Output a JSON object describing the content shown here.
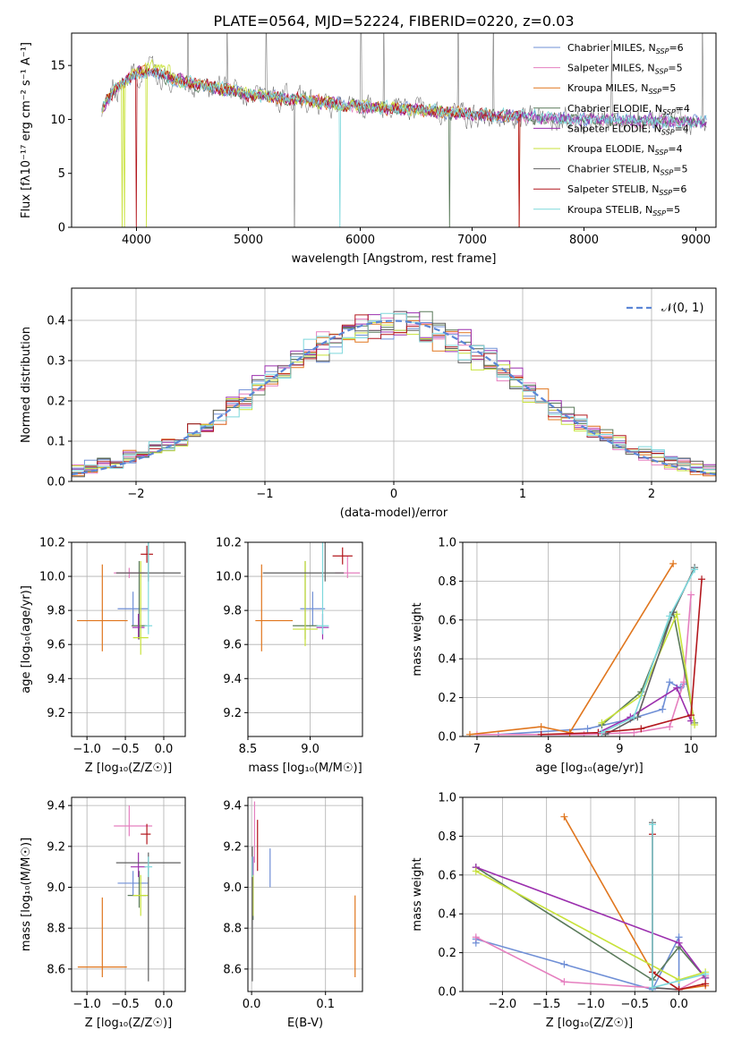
{
  "figure_title": "PLATE=0564, MJD=52224, FIBERID=0220, z=0.03",
  "colors": {
    "chabrier_miles": "#6f8fd6",
    "salpeter_miles": "#e57fbf",
    "kroupa_miles": "#e0761e",
    "chabrier_elodie": "#5a7a5a",
    "salpeter_elodie": "#9b2fae",
    "kroupa_elodie": "#c8e23a",
    "chabrier_stelib": "#606060",
    "salpeter_stelib": "#b2171d",
    "kroupa_stelib": "#7dd8dc",
    "gauss": "#5b86d6"
  },
  "chart_data": [
    {
      "id": "spectrum",
      "type": "line",
      "xlabel": "wavelength [Angstrom, rest frame]",
      "ylabel": "Flux [fλ10⁻¹⁷ erg cm⁻² s⁻¹ A⁻¹]",
      "xlim": [
        3420,
        9180
      ],
      "ylim": [
        0,
        18
      ],
      "xticks": [
        4000,
        5000,
        6000,
        7000,
        8000,
        9000
      ],
      "yticks": [
        0,
        5,
        10,
        15
      ],
      "grid": false,
      "legend_position": "top-right",
      "legend": [
        "Chabrier MILES, N_SSP=6",
        "Salpeter MILES, N_SSP=5",
        "Kroupa MILES, N_SSP=5",
        "Chabrier ELODIE, N_SSP=4",
        "Salpeter ELODIE, N_SSP=4",
        "Kroupa ELODIE, N_SSP=4",
        "Chabrier STELIB, N_SSP=5",
        "Salpeter STELIB, N_SSP=6",
        "Kroupa STELIB, N_SSP=5"
      ],
      "data_continuum": {
        "x": [
          3680,
          3800,
          3950,
          4050,
          4200,
          4500,
          4800,
          5000,
          5300,
          5600,
          6000,
          6500,
          7000,
          7500,
          8000,
          8500,
          9000,
          9100
        ],
        "y": [
          11.0,
          12.6,
          14.0,
          14.4,
          14.2,
          13.3,
          12.8,
          12.3,
          12.0,
          11.7,
          11.2,
          10.9,
          10.5,
          10.2,
          10.0,
          9.9,
          9.8,
          9.8
        ]
      }
    },
    {
      "id": "residual_hist",
      "type": "histogram",
      "xlabel": "(data-model)/error",
      "ylabel": "Normed distribution",
      "xlim": [
        -2.5,
        2.5
      ],
      "ylim": [
        0,
        0.48
      ],
      "xticks": [
        -2,
        -1,
        0,
        1,
        2
      ],
      "yticks": [
        0.0,
        0.1,
        0.2,
        0.3,
        0.4
      ],
      "grid": true,
      "legend_position": "top-right",
      "legend": [
        "𝒩(0, 1)"
      ],
      "bin_width": 0.1
    },
    {
      "id": "age_vs_Z",
      "type": "errorbar",
      "xlabel": "Z [log₁₀(Z/Z☉)]",
      "ylabel": "age  [log₁₀(age/yr)]",
      "xlim": [
        -1.2,
        0.28
      ],
      "ylim": [
        9.06,
        10.2
      ],
      "xticks": [
        -1.0,
        -0.5,
        0.0
      ],
      "yticks": [
        9.2,
        9.4,
        9.6,
        9.8,
        10.0,
        10.2
      ],
      "grid": true,
      "points": [
        {
          "c": "chabrier_miles",
          "x": -0.4,
          "xerr": [
            0.2,
            0.2
          ],
          "y": 9.81,
          "yerr": [
            0.1,
            0.1
          ]
        },
        {
          "c": "salpeter_miles",
          "x": -0.45,
          "xerr": [
            0.2,
            0.2
          ],
          "y": 10.02,
          "yerr": [
            0.03,
            0.03
          ]
        },
        {
          "c": "kroupa_miles",
          "x": -0.8,
          "xerr": [
            0.33,
            0.33
          ],
          "y": 9.74,
          "yerr": [
            0.18,
            0.33
          ]
        },
        {
          "c": "chabrier_elodie",
          "x": -0.32,
          "xerr": [
            0.1,
            0.1
          ],
          "y": 9.71,
          "yerr": [
            0.08,
            0.38
          ]
        },
        {
          "c": "salpeter_elodie",
          "x": -0.33,
          "xerr": [
            0.08,
            0.08
          ],
          "y": 9.7,
          "yerr": [
            0.07,
            0.08
          ]
        },
        {
          "c": "kroupa_elodie",
          "x": -0.3,
          "xerr": [
            0.1,
            0.1
          ],
          "y": 9.64,
          "yerr": [
            0.1,
            0.45
          ]
        },
        {
          "c": "chabrier_stelib",
          "x": -0.2,
          "xerr": [
            0.42,
            0.42
          ],
          "y": 10.02,
          "yerr": [
            0.05,
            0.9
          ]
        },
        {
          "c": "salpeter_stelib",
          "x": -0.22,
          "xerr": [
            0.08,
            0.08
          ],
          "y": 10.13,
          "yerr": [
            0.05,
            0.05
          ]
        },
        {
          "c": "kroupa_stelib",
          "x": -0.2,
          "xerr": [
            0.05,
            0.05
          ],
          "y": 9.71,
          "yerr": [
            0.05,
            0.6
          ]
        }
      ]
    },
    {
      "id": "age_vs_mass",
      "type": "errorbar",
      "xlabel": "mass [log₁₀(M/M☉)]",
      "ylabel": "",
      "xlim": [
        8.5,
        9.42
      ],
      "ylim": [
        9.06,
        10.2
      ],
      "xticks": [
        8.5,
        9.0
      ],
      "yticks": [
        9.2,
        9.4,
        9.6,
        9.8,
        10.0,
        10.2
      ],
      "grid": true,
      "points": [
        {
          "c": "chabrier_miles",
          "x": 9.02,
          "xerr": [
            0.1,
            0.1
          ],
          "y": 9.81,
          "yerr": [
            0.1,
            0.1
          ]
        },
        {
          "c": "salpeter_miles",
          "x": 9.3,
          "xerr": [
            0.1,
            0.1
          ],
          "y": 10.02,
          "yerr": [
            0.03,
            0.1
          ]
        },
        {
          "c": "kroupa_miles",
          "x": 8.61,
          "xerr": [
            0.05,
            0.25
          ],
          "y": 9.74,
          "yerr": [
            0.18,
            0.33
          ]
        },
        {
          "c": "chabrier_elodie",
          "x": 8.96,
          "xerr": [
            0.1,
            0.1
          ],
          "y": 9.71,
          "yerr": [
            0.08,
            0.38
          ]
        },
        {
          "c": "salpeter_elodie",
          "x": 9.1,
          "xerr": [
            0.05,
            0.05
          ],
          "y": 9.7,
          "yerr": [
            0.07,
            0.08
          ]
        },
        {
          "c": "kroupa_elodie",
          "x": 8.96,
          "xerr": [
            0.1,
            0.1
          ],
          "y": 9.69,
          "yerr": [
            0.1,
            0.4
          ]
        },
        {
          "c": "chabrier_stelib",
          "x": 9.12,
          "xerr": [
            0.5,
            0.15
          ],
          "y": 10.02,
          "yerr": [
            0.05,
            0.9
          ]
        },
        {
          "c": "salpeter_stelib",
          "x": 9.26,
          "xerr": [
            0.08,
            0.08
          ],
          "y": 10.12,
          "yerr": [
            0.05,
            0.05
          ]
        },
        {
          "c": "kroupa_stelib",
          "x": 9.1,
          "xerr": [
            0.05,
            0.05
          ],
          "y": 9.71,
          "yerr": [
            0.05,
            0.6
          ]
        }
      ]
    },
    {
      "id": "mass_weight_vs_age",
      "type": "line",
      "xlabel": "age  [log₁₀(age/yr)]",
      "ylabel": "mass weight",
      "xlim": [
        6.8,
        10.35
      ],
      "ylim": [
        0,
        1.0
      ],
      "xticks": [
        7,
        8,
        9,
        10
      ],
      "yticks": [
        0.0,
        0.2,
        0.4,
        0.6,
        0.8,
        1.0
      ],
      "grid": true,
      "series": [
        {
          "c": "chabrier_miles",
          "x": [
            7.3,
            8.55,
            9.15,
            9.6,
            9.7,
            9.85,
            9.9
          ],
          "y": [
            0.01,
            0.04,
            0.09,
            0.14,
            0.28,
            0.25,
            0.27
          ]
        },
        {
          "c": "salpeter_miles",
          "x": [
            7.0,
            8.5,
            9.2,
            9.7,
            9.9,
            10.0
          ],
          "y": [
            0.01,
            0.01,
            0.02,
            0.05,
            0.28,
            0.73
          ]
        },
        {
          "c": "kroupa_miles",
          "x": [
            6.9,
            7.9,
            8.3,
            9.75
          ],
          "y": [
            0.01,
            0.05,
            0.02,
            0.89
          ]
        },
        {
          "c": "chabrier_elodie",
          "x": [
            8.75,
            9.3,
            9.75,
            10.05
          ],
          "y": [
            0.06,
            0.23,
            0.64,
            0.07
          ]
        },
        {
          "c": "salpeter_elodie",
          "x": [
            8.7,
            9.15,
            9.8,
            10.0
          ],
          "y": [
            0.02,
            0.1,
            0.25,
            0.08
          ]
        },
        {
          "c": "kroupa_elodie",
          "x": [
            8.75,
            9.3,
            9.8,
            10.05
          ],
          "y": [
            0.07,
            0.21,
            0.63,
            0.06
          ]
        },
        {
          "c": "chabrier_stelib",
          "x": [
            8.8,
            9.25,
            9.75,
            10.05
          ],
          "y": [
            0.01,
            0.1,
            0.64,
            0.87
          ]
        },
        {
          "c": "salpeter_stelib",
          "x": [
            7.9,
            8.7,
            9.3,
            10.0,
            10.15
          ],
          "y": [
            0.01,
            0.02,
            0.04,
            0.11,
            0.81
          ]
        },
        {
          "c": "kroupa_stelib",
          "x": [
            8.75,
            9.2,
            9.7,
            10.05
          ],
          "y": [
            0.02,
            0.1,
            0.62,
            0.86
          ]
        }
      ]
    },
    {
      "id": "mass_vs_Z",
      "type": "errorbar",
      "xlabel": "Z [log₁₀(Z/Z☉)]",
      "ylabel": "mass [log₁₀(M/M☉)]",
      "xlim": [
        -1.2,
        0.28
      ],
      "ylim": [
        8.49,
        9.44
      ],
      "xticks": [
        -1.0,
        -0.5,
        0.0
      ],
      "yticks": [
        8.6,
        8.8,
        9.0,
        9.2,
        9.4
      ],
      "grid": true,
      "points": [
        {
          "c": "chabrier_miles",
          "x": -0.4,
          "xerr": [
            0.2,
            0.2
          ],
          "y": 9.02,
          "yerr": [
            0.06,
            0.06
          ]
        },
        {
          "c": "salpeter_miles",
          "x": -0.45,
          "xerr": [
            0.2,
            0.3
          ],
          "y": 9.3,
          "yerr": [
            0.05,
            0.1
          ]
        },
        {
          "c": "kroupa_miles",
          "x": -0.8,
          "xerr": [
            0.32,
            0.32
          ],
          "y": 8.61,
          "yerr": [
            0.05,
            0.34
          ]
        },
        {
          "c": "chabrier_elodie",
          "x": -0.32,
          "xerr": [
            0.15,
            0.1
          ],
          "y": 8.96,
          "yerr": [
            0.06,
            0.12
          ]
        },
        {
          "c": "salpeter_elodie",
          "x": -0.33,
          "xerr": [
            0.1,
            0.1
          ],
          "y": 9.1,
          "yerr": [
            0.05,
            0.07
          ]
        },
        {
          "c": "kroupa_elodie",
          "x": -0.3,
          "xerr": [
            0.1,
            0.1
          ],
          "y": 8.96,
          "yerr": [
            0.1,
            0.1
          ]
        },
        {
          "c": "chabrier_stelib",
          "x": -0.2,
          "xerr": [
            0.42,
            0.42
          ],
          "y": 9.12,
          "yerr": [
            0.58,
            0.05
          ]
        },
        {
          "c": "salpeter_stelib",
          "x": -0.22,
          "xerr": [
            0.08,
            0.05
          ],
          "y": 9.26,
          "yerr": [
            0.05,
            0.05
          ]
        },
        {
          "c": "kroupa_stelib",
          "x": -0.2,
          "xerr": [
            0.05,
            0.05
          ],
          "y": 9.1,
          "yerr": [
            0.05,
            0.05
          ]
        }
      ]
    },
    {
      "id": "mass_vs_ebv",
      "type": "errorbar",
      "xlabel": "E(B-V)",
      "ylabel": "",
      "xlim": [
        -0.005,
        0.15
      ],
      "ylim": [
        8.49,
        9.44
      ],
      "xticks": [
        0.0,
        0.1
      ],
      "yticks": [
        8.6,
        8.8,
        9.0,
        9.2,
        9.4
      ],
      "grid": true,
      "points": [
        {
          "c": "chabrier_miles",
          "x": 0.025,
          "xerr": [
            0,
            0
          ],
          "y": 9.06,
          "yerr": [
            0.06,
            0.13
          ]
        },
        {
          "c": "salpeter_miles",
          "x": 0.004,
          "xerr": [
            0,
            0
          ],
          "y": 9.22,
          "yerr": [
            0.1,
            0.2
          ]
        },
        {
          "c": "kroupa_miles",
          "x": 0.14,
          "xerr": [
            0,
            0
          ],
          "y": 8.76,
          "yerr": [
            0.2,
            0.2
          ]
        },
        {
          "c": "chabrier_elodie",
          "x": 0.002,
          "xerr": [
            0,
            0
          ],
          "y": 8.96,
          "yerr": [
            0.12,
            0.1
          ]
        },
        {
          "c": "salpeter_elodie",
          "x": 0.002,
          "xerr": [
            0,
            0
          ],
          "y": 9.1,
          "yerr": [
            0.05,
            0.05
          ]
        },
        {
          "c": "kroupa_elodie",
          "x": 0.002,
          "xerr": [
            0,
            0
          ],
          "y": 8.96,
          "yerr": [
            0.1,
            0.1
          ]
        },
        {
          "c": "chabrier_stelib",
          "x": 0.001,
          "xerr": [
            0,
            0
          ],
          "y": 8.9,
          "yerr": [
            0.36,
            0.3
          ]
        },
        {
          "c": "salpeter_stelib",
          "x": 0.008,
          "xerr": [
            0,
            0
          ],
          "y": 9.2,
          "yerr": [
            0.12,
            0.13
          ]
        },
        {
          "c": "kroupa_stelib",
          "x": 0.001,
          "xerr": [
            0,
            0
          ],
          "y": 9.1,
          "yerr": [
            0.05,
            0.05
          ]
        }
      ]
    },
    {
      "id": "mass_weight_vs_Z",
      "type": "line",
      "xlabel": "Z [log₁₀(Z/Z☉)]",
      "ylabel": "mass weight",
      "xlim": [
        -2.45,
        0.42
      ],
      "ylim": [
        0,
        1.0
      ],
      "xticks": [
        -2.0,
        -1.5,
        -1.0,
        -0.5,
        0.0
      ],
      "yticks": [
        0.0,
        0.2,
        0.4,
        0.6,
        0.8,
        1.0
      ],
      "grid": true,
      "series": [
        {
          "c": "chabrier_miles",
          "x": [
            -2.3,
            -2.3,
            -1.3,
            -0.3,
            0.0,
            0.0
          ],
          "y": [
            0.25,
            0.27,
            0.14,
            0.01,
            0.28,
            0.01
          ]
        },
        {
          "c": "salpeter_miles",
          "x": [
            -2.3,
            -1.3,
            0.0,
            0.3
          ],
          "y": [
            0.28,
            0.05,
            0.01,
            0.08
          ]
        },
        {
          "c": "kroupa_miles",
          "x": [
            -1.3,
            -0.3,
            0.0,
            0.3
          ],
          "y": [
            0.9,
            0.1,
            0.01,
            0.03
          ]
        },
        {
          "c": "chabrier_elodie",
          "x": [
            -2.3,
            -0.3,
            0.0,
            0.3
          ],
          "y": [
            0.64,
            0.06,
            0.23,
            0.07
          ]
        },
        {
          "c": "salpeter_elodie",
          "x": [
            -2.3,
            0.0,
            0.3
          ],
          "y": [
            0.64,
            0.25,
            0.07
          ]
        },
        {
          "c": "kroupa_elodie",
          "x": [
            -2.3,
            0.0,
            0.3
          ],
          "y": [
            0.62,
            0.06,
            0.1
          ]
        },
        {
          "c": "chabrier_stelib",
          "x": [
            -0.3,
            -0.3,
            0.0
          ],
          "y": [
            0.87,
            0.02,
            0.01
          ]
        },
        {
          "c": "salpeter_stelib",
          "x": [
            -0.3,
            -0.3,
            0.0,
            0.3
          ],
          "y": [
            0.81,
            0.1,
            0.01,
            0.04
          ]
        },
        {
          "c": "kroupa_stelib",
          "x": [
            -0.3,
            -0.3,
            0.3
          ],
          "y": [
            0.86,
            0.02,
            0.09
          ]
        }
      ]
    }
  ]
}
